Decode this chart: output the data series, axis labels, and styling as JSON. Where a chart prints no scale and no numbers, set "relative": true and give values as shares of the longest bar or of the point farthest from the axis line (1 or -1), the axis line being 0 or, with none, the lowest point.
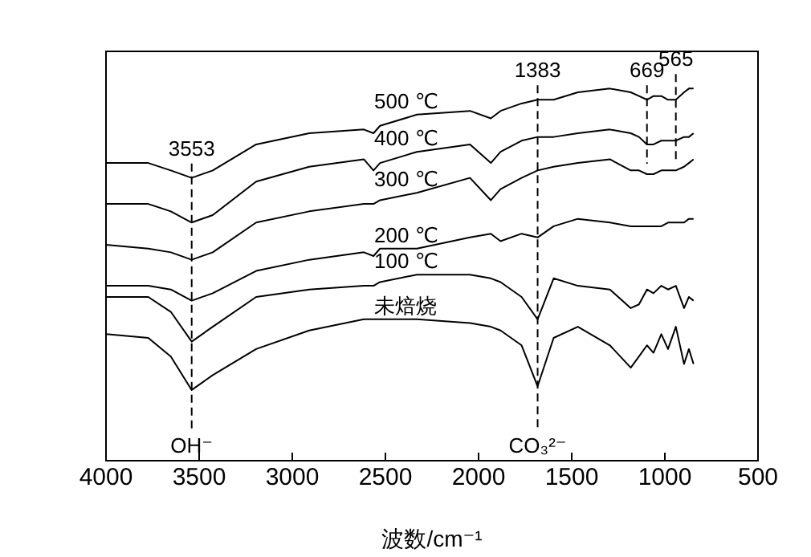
{
  "chart_data": {
    "type": "line",
    "relative": true,
    "xlabel": "波数/cm⁻¹",
    "xlim": [
      4000,
      500
    ],
    "xticks": [
      4000,
      3500,
      3000,
      2500,
      2000,
      1500,
      1000,
      500
    ],
    "tick_labels": "x",
    "grid": false,
    "legend": false,
    "marker": "none",
    "line_style": "solid",
    "x": [
      4000,
      3773,
      3652,
      3540,
      3427,
      3194,
      2909,
      2616,
      2564,
      2529,
      2331,
      2046,
      1934,
      1882,
      1769,
      1683,
      1597,
      1467,
      1295,
      1183,
      1139,
      1096,
      1061,
      1019,
      983,
      941,
      897,
      871,
      846
    ],
    "series": [
      {
        "name": "500 ℃",
        "color": "#000000",
        "values": [
          0.8,
          0.8,
          0.78,
          0.76,
          0.78,
          0.85,
          0.88,
          0.89,
          0.88,
          0.9,
          0.93,
          0.94,
          0.92,
          0.94,
          0.96,
          0.97,
          0.97,
          0.99,
          1,
          0.99,
          0.98,
          0.97,
          0.98,
          0.98,
          0.97,
          0.97,
          0.99,
          1,
          1
        ]
      },
      {
        "name": "400 ℃",
        "color": "#000000",
        "values": [
          0.69,
          0.69,
          0.67,
          0.64,
          0.66,
          0.75,
          0.79,
          0.81,
          0.78,
          0.8,
          0.83,
          0.85,
          0.8,
          0.83,
          0.86,
          0.87,
          0.87,
          0.88,
          0.89,
          0.88,
          0.87,
          0.85,
          0.85,
          0.86,
          0.86,
          0.86,
          0.87,
          0.87,
          0.88
        ]
      },
      {
        "name": "300 ℃",
        "color": "#000000",
        "values": [
          0.58,
          0.57,
          0.56,
          0.54,
          0.56,
          0.64,
          0.67,
          0.69,
          0.69,
          0.7,
          0.72,
          0.76,
          0.7,
          0.73,
          0.76,
          0.78,
          0.79,
          0.8,
          0.81,
          0.78,
          0.78,
          0.77,
          0.77,
          0.78,
          0.78,
          0.78,
          0.79,
          0.8,
          0.81
        ]
      },
      {
        "name": "200 ℃",
        "color": "#000000",
        "values": [
          0.47,
          0.47,
          0.46,
          0.43,
          0.45,
          0.51,
          0.54,
          0.56,
          0.55,
          0.57,
          0.57,
          0.6,
          0.61,
          0.59,
          0.61,
          0.6,
          0.63,
          0.65,
          0.64,
          0.63,
          0.63,
          0.63,
          0.63,
          0.63,
          0.64,
          0.64,
          0.64,
          0.65,
          0.65
        ]
      },
      {
        "name": "100 ℃",
        "color": "#000000",
        "values": [
          0.44,
          0.44,
          0.4,
          0.32,
          0.36,
          0.44,
          0.46,
          0.47,
          0.47,
          0.48,
          0.5,
          0.5,
          0.49,
          0.48,
          0.44,
          0.38,
          0.49,
          0.47,
          0.46,
          0.41,
          0.42,
          0.46,
          0.45,
          0.47,
          0.46,
          0.47,
          0.41,
          0.44,
          0.43
        ]
      },
      {
        "name": "未焙烧",
        "color": "#000000",
        "values": [
          0.34,
          0.33,
          0.28,
          0.19,
          0.23,
          0.3,
          0.35,
          0.38,
          0.38,
          0.38,
          0.38,
          0.37,
          0.36,
          0.35,
          0.31,
          0.2,
          0.33,
          0.36,
          0.31,
          0.25,
          0.28,
          0.31,
          0.29,
          0.34,
          0.3,
          0.36,
          0.26,
          0.3,
          0.26
        ]
      }
    ],
    "ref_lines": [
      {
        "axis": "x",
        "value": 3540,
        "line_style": "dashed",
        "color": "#000000"
      },
      {
        "axis": "x",
        "value": 1683,
        "line_style": "dashed",
        "color": "#000000"
      },
      {
        "axis": "x",
        "value": 1096,
        "line_style": "dashed",
        "color": "#000000"
      },
      {
        "axis": "x",
        "value": 941,
        "line_style": "dashed",
        "color": "#000000"
      }
    ],
    "annotations": [
      "3553",
      "1383",
      "669",
      "565",
      "OH⁻",
      "CO₃²⁻"
    ]
  }
}
